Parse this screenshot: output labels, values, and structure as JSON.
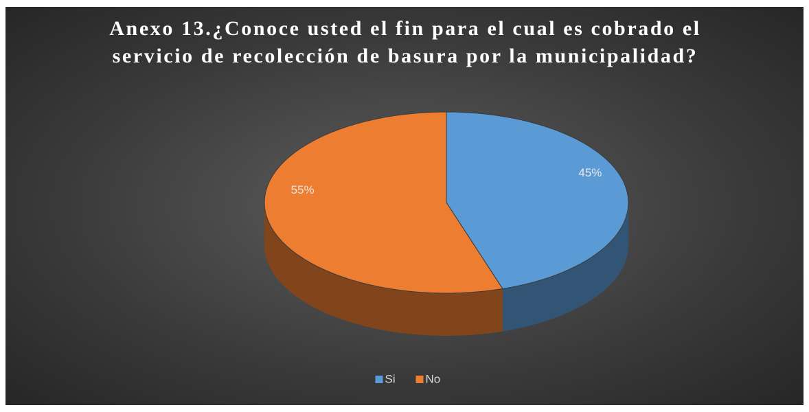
{
  "chart_data": {
    "type": "pie",
    "title": "Anexo 13.¿Conoce usted el fin para el cual es cobrado el servicio de recolección de basura por la municipalidad?",
    "categories": [
      "Si",
      "No"
    ],
    "values": [
      45,
      55
    ],
    "value_labels": [
      "45%",
      "55%"
    ],
    "colors": [
      "#5b9bd5",
      "#ed7d31"
    ],
    "legend": "bottom"
  }
}
